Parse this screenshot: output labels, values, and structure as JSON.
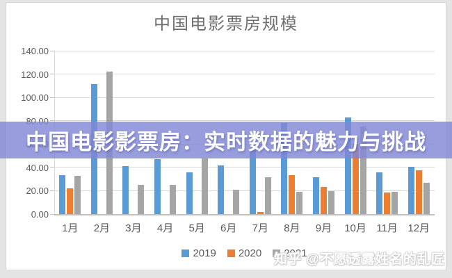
{
  "page": {
    "title": "中国电影票房规模"
  },
  "banner": {
    "text": "中国电影影票房：实时数据的魅力与挑战",
    "bg_rgba": "rgba(129,136,213,0.82)",
    "text_color": "#ffffff"
  },
  "watermark": {
    "text": "知乎 @不愿透露姓名的乱匠"
  },
  "chart_data": {
    "type": "bar",
    "title": "中国电影票房规模",
    "categories": [
      "1月",
      "2月",
      "3月",
      "4月",
      "5月",
      "6月",
      "7月",
      "8月",
      "9月",
      "10月",
      "11月",
      "12月"
    ],
    "series": [
      {
        "name": "2019",
        "color": "#5B9BD5",
        "values": [
          33.5,
          111.5,
          41,
          47,
          36,
          41.5,
          56.5,
          78,
          31.5,
          83,
          35.5,
          40.5
        ]
      },
      {
        "name": "2020",
        "color": "#ED7D31",
        "values": [
          22,
          0,
          0,
          0,
          0,
          0,
          2,
          33.5,
          23.5,
          60,
          18.5,
          37.5
        ]
      },
      {
        "name": "2021",
        "color": "#A5A5A5",
        "values": [
          33,
          122,
          25,
          25,
          47.5,
          21,
          31.5,
          19,
          19.5,
          75,
          19,
          27
        ]
      }
    ],
    "xlabel": "",
    "ylabel": "",
    "ylim": [
      0,
      140
    ],
    "ytick_step": 20,
    "ytick_labels": [
      "0.00",
      "20.00",
      "40.00",
      "60.00",
      "80.00",
      "100.00",
      "120.00",
      "140.00"
    ],
    "grid": true,
    "legend_position": "bottom",
    "colors": {
      "grid": "#d9d9d9",
      "axis": "#bfbfbf",
      "tick_text": "#595959",
      "title_text": "#6e6e6e"
    }
  }
}
